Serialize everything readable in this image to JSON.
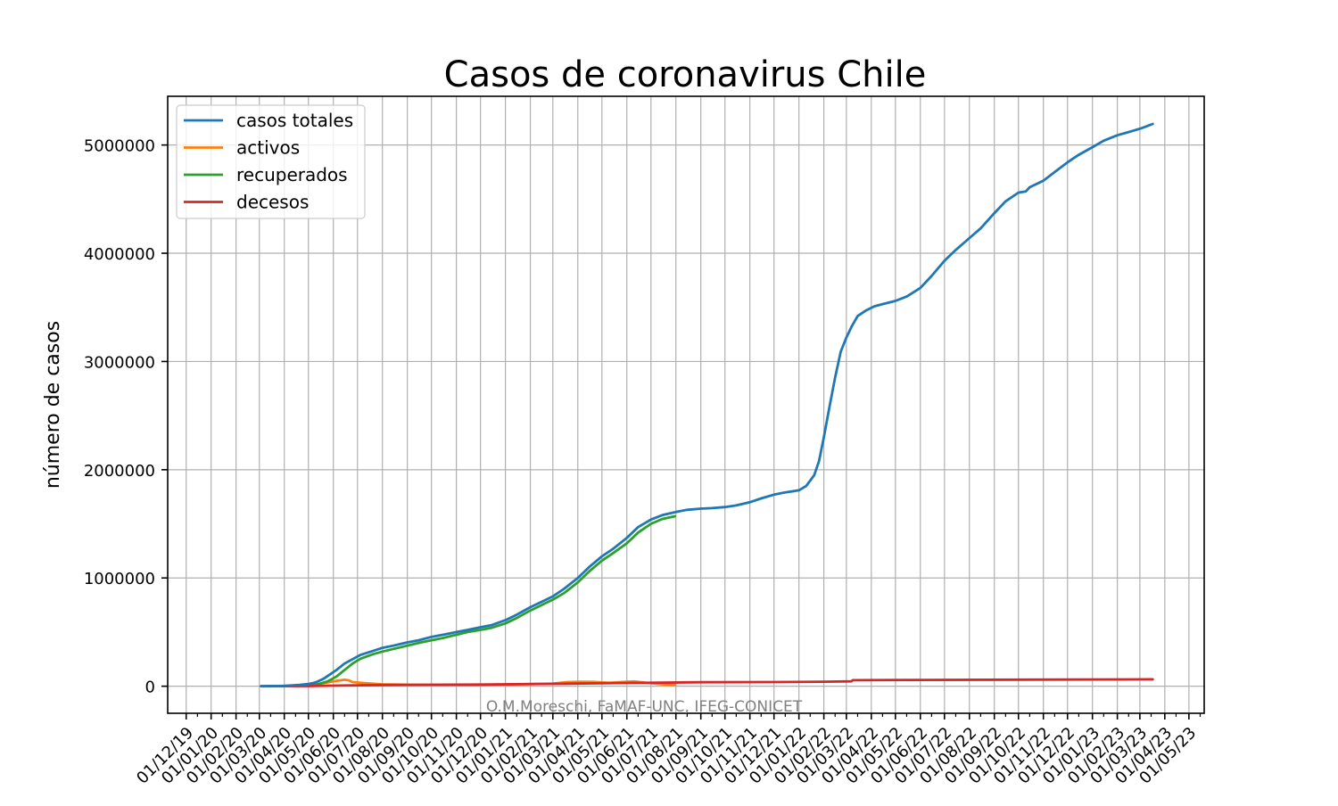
{
  "chart_data": {
    "type": "line",
    "title": "Casos de coronavirus Chile",
    "xlabel": "",
    "ylabel": "número de casos",
    "watermark": "O.M.Moreschi, FaMAF-UNC, IFEG-CONICET",
    "grid": true,
    "legend_position": "top-left",
    "x_type": "date",
    "xlim": [
      "2019-11-08",
      "2023-05-20"
    ],
    "ylim": [
      -250000,
      5450000
    ],
    "yticks": [
      0,
      1000000,
      2000000,
      3000000,
      4000000,
      5000000
    ],
    "ytick_labels": [
      "0",
      "1000000",
      "2000000",
      "3000000",
      "4000000",
      "5000000"
    ],
    "xticks": [
      "2019-12-01",
      "2020-01-01",
      "2020-02-01",
      "2020-03-01",
      "2020-04-01",
      "2020-05-01",
      "2020-06-01",
      "2020-07-01",
      "2020-08-01",
      "2020-09-01",
      "2020-10-01",
      "2020-11-01",
      "2020-12-01",
      "2021-01-01",
      "2021-02-01",
      "2021-03-01",
      "2021-04-01",
      "2021-05-01",
      "2021-06-01",
      "2021-07-01",
      "2021-08-01",
      "2021-09-01",
      "2021-10-01",
      "2021-11-01",
      "2021-12-01",
      "2022-01-01",
      "2022-02-01",
      "2022-03-01",
      "2022-04-01",
      "2022-05-01",
      "2022-06-01",
      "2022-07-01",
      "2022-08-01",
      "2022-09-01",
      "2022-10-01",
      "2022-11-01",
      "2022-12-01",
      "2023-01-01",
      "2023-02-01",
      "2023-03-01",
      "2023-04-01",
      "2023-05-01"
    ],
    "xtick_labels": [
      "01/12/19",
      "01/01/20",
      "01/02/20",
      "01/03/20",
      "01/04/20",
      "01/05/20",
      "01/06/20",
      "01/07/20",
      "01/08/20",
      "01/09/20",
      "01/10/20",
      "01/11/20",
      "01/12/20",
      "01/01/21",
      "01/02/21",
      "01/03/21",
      "01/04/21",
      "01/05/21",
      "01/06/21",
      "01/07/21",
      "01/08/21",
      "01/09/21",
      "01/10/21",
      "01/11/21",
      "01/12/21",
      "01/01/22",
      "01/02/22",
      "01/03/22",
      "01/04/22",
      "01/05/22",
      "01/06/22",
      "01/07/22",
      "01/08/22",
      "01/09/22",
      "01/10/22",
      "01/11/22",
      "01/12/22",
      "01/01/23",
      "01/02/23",
      "01/03/23",
      "01/04/23",
      "01/05/23"
    ],
    "series": [
      {
        "name": "casos totales",
        "color": "#1f77b4",
        "points": [
          [
            "2020-03-03",
            0
          ],
          [
            "2020-04-01",
            3000
          ],
          [
            "2020-04-20",
            12000
          ],
          [
            "2020-05-01",
            20000
          ],
          [
            "2020-05-10",
            35000
          ],
          [
            "2020-05-20",
            70000
          ],
          [
            "2020-05-28",
            110000
          ],
          [
            "2020-06-05",
            150000
          ],
          [
            "2020-06-15",
            210000
          ],
          [
            "2020-06-25",
            250000
          ],
          [
            "2020-07-05",
            290000
          ],
          [
            "2020-07-20",
            325000
          ],
          [
            "2020-08-01",
            355000
          ],
          [
            "2020-08-15",
            375000
          ],
          [
            "2020-09-01",
            405000
          ],
          [
            "2020-09-15",
            425000
          ],
          [
            "2020-10-01",
            455000
          ],
          [
            "2020-10-15",
            475000
          ],
          [
            "2020-11-01",
            500000
          ],
          [
            "2020-11-15",
            520000
          ],
          [
            "2020-12-01",
            545000
          ],
          [
            "2020-12-15",
            565000
          ],
          [
            "2021-01-01",
            610000
          ],
          [
            "2021-01-15",
            660000
          ],
          [
            "2021-02-01",
            730000
          ],
          [
            "2021-02-15",
            780000
          ],
          [
            "2021-03-01",
            830000
          ],
          [
            "2021-03-15",
            900000
          ],
          [
            "2021-04-01",
            1000000
          ],
          [
            "2021-04-15",
            1100000
          ],
          [
            "2021-05-01",
            1200000
          ],
          [
            "2021-05-15",
            1270000
          ],
          [
            "2021-06-01",
            1370000
          ],
          [
            "2021-06-15",
            1470000
          ],
          [
            "2021-07-01",
            1540000
          ],
          [
            "2021-07-15",
            1580000
          ],
          [
            "2021-08-01",
            1610000
          ],
          [
            "2021-08-15",
            1630000
          ],
          [
            "2021-09-01",
            1640000
          ],
          [
            "2021-09-15",
            1645000
          ],
          [
            "2021-10-01",
            1655000
          ],
          [
            "2021-10-15",
            1670000
          ],
          [
            "2021-11-01",
            1700000
          ],
          [
            "2021-11-15",
            1735000
          ],
          [
            "2021-12-01",
            1770000
          ],
          [
            "2021-12-15",
            1790000
          ],
          [
            "2022-01-01",
            1810000
          ],
          [
            "2022-01-10",
            1850000
          ],
          [
            "2022-01-20",
            1950000
          ],
          [
            "2022-01-26",
            2080000
          ],
          [
            "2022-02-01",
            2300000
          ],
          [
            "2022-02-08",
            2580000
          ],
          [
            "2022-02-15",
            2850000
          ],
          [
            "2022-02-22",
            3090000
          ],
          [
            "2022-03-01",
            3220000
          ],
          [
            "2022-03-08",
            3330000
          ],
          [
            "2022-03-15",
            3420000
          ],
          [
            "2022-03-25",
            3470000
          ],
          [
            "2022-04-05",
            3510000
          ],
          [
            "2022-04-15",
            3530000
          ],
          [
            "2022-05-01",
            3560000
          ],
          [
            "2022-05-15",
            3600000
          ],
          [
            "2022-06-01",
            3680000
          ],
          [
            "2022-06-15",
            3790000
          ],
          [
            "2022-07-01",
            3930000
          ],
          [
            "2022-07-15",
            4030000
          ],
          [
            "2022-08-01",
            4140000
          ],
          [
            "2022-08-15",
            4230000
          ],
          [
            "2022-09-01",
            4370000
          ],
          [
            "2022-09-15",
            4480000
          ],
          [
            "2022-10-01",
            4560000
          ],
          [
            "2022-10-10",
            4570000
          ],
          [
            "2022-10-15",
            4610000
          ],
          [
            "2022-11-01",
            4670000
          ],
          [
            "2022-11-15",
            4750000
          ],
          [
            "2022-12-01",
            4840000
          ],
          [
            "2022-12-15",
            4910000
          ],
          [
            "2023-01-01",
            4980000
          ],
          [
            "2023-01-15",
            5040000
          ],
          [
            "2023-02-01",
            5090000
          ],
          [
            "2023-02-15",
            5120000
          ],
          [
            "2023-03-01",
            5150000
          ],
          [
            "2023-03-10",
            5175000
          ],
          [
            "2023-03-17",
            5195000
          ]
        ]
      },
      {
        "name": "activos",
        "color": "#ff7f0e",
        "points": [
          [
            "2020-03-03",
            0
          ],
          [
            "2020-04-15",
            5000
          ],
          [
            "2020-05-10",
            15000
          ],
          [
            "2020-05-25",
            35000
          ],
          [
            "2020-06-05",
            50000
          ],
          [
            "2020-06-15",
            60000
          ],
          [
            "2020-06-20",
            55000
          ],
          [
            "2020-06-25",
            38000
          ],
          [
            "2020-07-10",
            28000
          ],
          [
            "2020-08-01",
            18000
          ],
          [
            "2020-09-01",
            14000
          ],
          [
            "2020-10-01",
            13000
          ],
          [
            "2020-11-01",
            11000
          ],
          [
            "2020-12-01",
            12000
          ],
          [
            "2021-01-01",
            16000
          ],
          [
            "2021-02-01",
            20000
          ],
          [
            "2021-03-01",
            24000
          ],
          [
            "2021-03-20",
            38000
          ],
          [
            "2021-04-05",
            42000
          ],
          [
            "2021-04-20",
            40000
          ],
          [
            "2021-05-10",
            32000
          ],
          [
            "2021-06-01",
            42000
          ],
          [
            "2021-06-10",
            44000
          ],
          [
            "2021-06-25",
            32000
          ],
          [
            "2021-07-15",
            18000
          ],
          [
            "2021-07-31",
            12000
          ]
        ]
      },
      {
        "name": "recuperados",
        "color": "#2ca02c",
        "points": [
          [
            "2020-03-10",
            0
          ],
          [
            "2020-04-15",
            2000
          ],
          [
            "2020-05-10",
            12000
          ],
          [
            "2020-05-25",
            45000
          ],
          [
            "2020-06-05",
            90000
          ],
          [
            "2020-06-15",
            150000
          ],
          [
            "2020-06-25",
            210000
          ],
          [
            "2020-07-05",
            255000
          ],
          [
            "2020-07-20",
            295000
          ],
          [
            "2020-08-01",
            320000
          ],
          [
            "2020-08-15",
            345000
          ],
          [
            "2020-09-01",
            375000
          ],
          [
            "2020-09-15",
            400000
          ],
          [
            "2020-10-01",
            425000
          ],
          [
            "2020-10-15",
            445000
          ],
          [
            "2020-11-01",
            475000
          ],
          [
            "2020-11-15",
            500000
          ],
          [
            "2020-12-01",
            520000
          ],
          [
            "2020-12-15",
            540000
          ],
          [
            "2021-01-01",
            580000
          ],
          [
            "2021-01-15",
            630000
          ],
          [
            "2021-02-01",
            700000
          ],
          [
            "2021-02-15",
            750000
          ],
          [
            "2021-03-01",
            800000
          ],
          [
            "2021-03-15",
            860000
          ],
          [
            "2021-04-01",
            960000
          ],
          [
            "2021-04-15",
            1060000
          ],
          [
            "2021-05-01",
            1160000
          ],
          [
            "2021-05-15",
            1230000
          ],
          [
            "2021-06-01",
            1320000
          ],
          [
            "2021-06-15",
            1420000
          ],
          [
            "2021-07-01",
            1500000
          ],
          [
            "2021-07-15",
            1545000
          ],
          [
            "2021-07-31",
            1570000
          ]
        ]
      },
      {
        "name": "decesos",
        "color": "#d62728",
        "points": [
          [
            "2020-03-03",
            0
          ],
          [
            "2020-05-01",
            1500
          ],
          [
            "2020-06-01",
            5000
          ],
          [
            "2020-07-01",
            9000
          ],
          [
            "2020-08-01",
            11000
          ],
          [
            "2020-09-01",
            12500
          ],
          [
            "2020-12-01",
            15000
          ],
          [
            "2021-03-01",
            22000
          ],
          [
            "2021-06-01",
            30000
          ],
          [
            "2021-09-01",
            37000
          ],
          [
            "2021-12-01",
            38500
          ],
          [
            "2022-02-01",
            42000
          ],
          [
            "2022-03-07",
            45000
          ],
          [
            "2022-03-09",
            56000
          ],
          [
            "2022-06-01",
            58000
          ],
          [
            "2022-12-01",
            61000
          ],
          [
            "2023-03-17",
            64000
          ]
        ]
      }
    ]
  }
}
